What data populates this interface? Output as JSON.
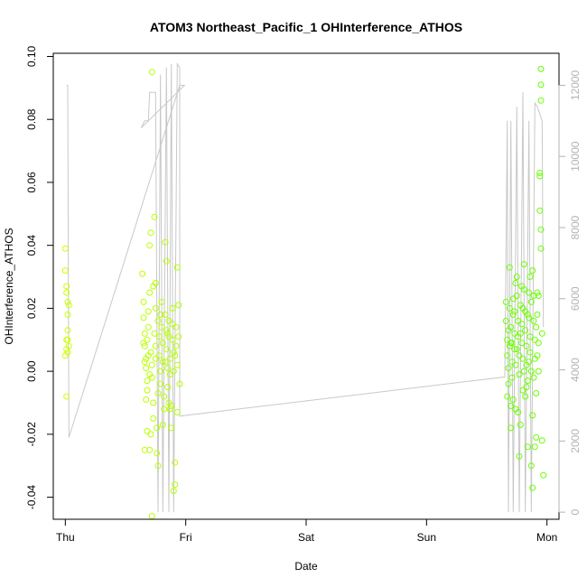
{
  "chart_data": {
    "type": "scatter",
    "title": "ATOM3 Northeast_Pacific_1 OHInterference_ATHOS",
    "xlabel": "Date",
    "ylabel": "OHInterference_ATHOS",
    "x_ticks": [
      "Thu",
      "Fri",
      "Sat",
      "Sun",
      "Mon"
    ],
    "x_range_days": [
      -0.1,
      4.1
    ],
    "ylim": [
      -0.047,
      0.101
    ],
    "y_ticks": [
      -0.04,
      -0.02,
      0.0,
      0.02,
      0.04,
      0.06,
      0.08,
      0.1
    ],
    "y_tick_labels": [
      "-0.04",
      "-0.02",
      "0.00",
      "0.02",
      "0.04",
      "0.06",
      "0.08",
      "0.10"
    ],
    "y2lim": [
      -200,
      12900
    ],
    "y2_ticks": [
      0,
      2000,
      4000,
      6000,
      8000,
      10000,
      12000
    ],
    "y2_tick_labels": [
      "0",
      "2000",
      "4000",
      "6000",
      "8000",
      "10000",
      "12000"
    ],
    "grid": false,
    "point_color_start": "#ccff00",
    "point_color_end": "#66ff00",
    "line_color": "#c8c8c8",
    "altitude_line": [
      [
        0.01,
        12000
      ],
      [
        0.02,
        12000
      ],
      [
        0.03,
        2100
      ],
      [
        0.95,
        12000
      ],
      [
        0.99,
        12000
      ],
      [
        0.63,
        10800
      ],
      [
        0.66,
        11000
      ],
      [
        0.69,
        11000
      ],
      [
        0.7,
        11800
      ],
      [
        0.75,
        11800
      ],
      [
        0.77,
        0
      ],
      [
        0.79,
        12300
      ],
      [
        0.81,
        0
      ],
      [
        0.84,
        12500
      ],
      [
        0.86,
        0
      ],
      [
        0.88,
        12600
      ],
      [
        0.9,
        0
      ],
      [
        0.93,
        12600
      ],
      [
        0.95,
        12500
      ],
      [
        0.95,
        2700
      ],
      [
        3.65,
        3800
      ],
      [
        3.67,
        11000
      ],
      [
        3.68,
        0
      ],
      [
        3.7,
        11000
      ],
      [
        3.72,
        0
      ],
      [
        3.75,
        11400
      ],
      [
        3.77,
        0
      ],
      [
        3.8,
        11800
      ],
      [
        3.82,
        0
      ],
      [
        3.85,
        11000
      ],
      [
        3.87,
        0
      ],
      [
        3.9,
        11500
      ],
      [
        3.92,
        11400
      ],
      [
        3.96,
        11000
      ],
      [
        3.97,
        5200
      ]
    ],
    "points": [
      [
        0.0,
        0.039
      ],
      [
        0.0,
        0.032
      ],
      [
        0.01,
        0.027
      ],
      [
        0.01,
        0.025
      ],
      [
        0.02,
        0.022
      ],
      [
        0.02,
        0.018
      ],
      [
        0.02,
        0.013
      ],
      [
        0.02,
        0.01
      ],
      [
        0.03,
        0.008
      ],
      [
        0.01,
        0.007
      ],
      [
        0.0,
        0.005
      ],
      [
        0.02,
        0.006
      ],
      [
        0.01,
        -0.008
      ],
      [
        0.03,
        0.021
      ],
      [
        0.01,
        0.01
      ],
      [
        0.64,
        0.031
      ],
      [
        0.65,
        0.022
      ],
      [
        0.65,
        0.017
      ],
      [
        0.66,
        0.012
      ],
      [
        0.66,
        0.008
      ],
      [
        0.67,
        0.004
      ],
      [
        0.67,
        0.001
      ],
      [
        0.68,
        -0.003
      ],
      [
        0.68,
        -0.006
      ],
      [
        0.68,
        0.01
      ],
      [
        0.69,
        0.014
      ],
      [
        0.69,
        0.019
      ],
      [
        0.7,
        0.025
      ],
      [
        0.7,
        0.04
      ],
      [
        0.71,
        0.044
      ],
      [
        0.71,
        0.006
      ],
      [
        0.72,
        0.002
      ],
      [
        0.72,
        -0.002
      ],
      [
        0.73,
        -0.01
      ],
      [
        0.73,
        -0.015
      ],
      [
        0.74,
        0.049
      ],
      [
        0.74,
        0.012
      ],
      [
        0.75,
        0.008
      ],
      [
        0.75,
        0.004
      ],
      [
        0.76,
        -0.018
      ],
      [
        0.76,
        -0.026
      ],
      [
        0.77,
        -0.03
      ],
      [
        0.77,
        0.016
      ],
      [
        0.78,
        0.011
      ],
      [
        0.78,
        0.005
      ],
      [
        0.79,
        0.0
      ],
      [
        0.79,
        -0.004
      ],
      [
        0.8,
        0.022
      ],
      [
        0.8,
        0.014
      ],
      [
        0.81,
        0.009
      ],
      [
        0.81,
        0.003
      ],
      [
        0.82,
        -0.008
      ],
      [
        0.82,
        -0.012
      ],
      [
        0.83,
        0.041
      ],
      [
        0.83,
        0.018
      ],
      [
        0.84,
        0.013
      ],
      [
        0.84,
        0.007
      ],
      [
        0.85,
        0.001
      ],
      [
        0.85,
        -0.005
      ],
      [
        0.86,
        0.016
      ],
      [
        0.86,
        0.011
      ],
      [
        0.87,
        0.004
      ],
      [
        0.87,
        -0.001
      ],
      [
        0.88,
        -0.011
      ],
      [
        0.88,
        -0.018
      ],
      [
        0.89,
        0.015
      ],
      [
        0.89,
        0.01
      ],
      [
        0.9,
        0.006
      ],
      [
        0.9,
        0.0
      ],
      [
        0.91,
        -0.029
      ],
      [
        0.91,
        -0.036
      ],
      [
        0.92,
        0.014
      ],
      [
        0.92,
        0.008
      ],
      [
        0.93,
        0.002
      ],
      [
        0.93,
        0.033
      ],
      [
        0.94,
        0.021
      ],
      [
        0.94,
        0.011
      ],
      [
        0.95,
        -0.004
      ],
      [
        0.72,
        0.095
      ],
      [
        0.72,
        -0.046
      ],
      [
        0.65,
        0.009
      ],
      [
        0.66,
        0.003
      ],
      [
        0.67,
        -0.009
      ],
      [
        0.69,
        0.005
      ],
      [
        0.7,
        -0.001
      ],
      [
        0.71,
        -0.02
      ],
      [
        0.73,
        0.027
      ],
      [
        0.75,
        0.02
      ],
      [
        0.77,
        -0.007
      ],
      [
        0.79,
        0.018
      ],
      [
        0.81,
        -0.017
      ],
      [
        0.83,
        0.003
      ],
      [
        0.85,
        0.012
      ],
      [
        0.87,
        -0.012
      ],
      [
        0.89,
        0.02
      ],
      [
        0.91,
        0.005
      ],
      [
        0.93,
        -0.013
      ],
      [
        0.66,
        -0.025
      ],
      [
        0.68,
        -0.019
      ],
      [
        0.7,
        -0.025
      ],
      [
        0.9,
        -0.038
      ],
      [
        0.75,
        0.028
      ],
      [
        0.84,
        0.035
      ],
      [
        0.86,
        -0.01
      ],
      [
        3.66,
        0.022
      ],
      [
        3.66,
        0.016
      ],
      [
        3.67,
        0.01
      ],
      [
        3.67,
        0.005
      ],
      [
        3.68,
        0.001
      ],
      [
        3.68,
        -0.004
      ],
      [
        3.69,
        0.033
      ],
      [
        3.69,
        0.02
      ],
      [
        3.7,
        0.014
      ],
      [
        3.7,
        0.009
      ],
      [
        3.71,
        0.003
      ],
      [
        3.71,
        -0.002
      ],
      [
        3.72,
        -0.009
      ],
      [
        3.72,
        0.018
      ],
      [
        3.73,
        0.012
      ],
      [
        3.73,
        0.007
      ],
      [
        3.74,
        0.002
      ],
      [
        3.74,
        -0.012
      ],
      [
        3.75,
        0.03
      ],
      [
        3.75,
        0.024
      ],
      [
        3.76,
        0.016
      ],
      [
        3.76,
        0.011
      ],
      [
        3.77,
        0.005
      ],
      [
        3.77,
        -0.001
      ],
      [
        3.78,
        -0.017
      ],
      [
        3.78,
        0.021
      ],
      [
        3.79,
        0.015
      ],
      [
        3.79,
        0.009
      ],
      [
        3.8,
        0.004
      ],
      [
        3.8,
        -0.006
      ],
      [
        3.81,
        0.034
      ],
      [
        3.81,
        0.026
      ],
      [
        3.82,
        0.019
      ],
      [
        3.82,
        0.013
      ],
      [
        3.83,
        0.008
      ],
      [
        3.83,
        0.002
      ],
      [
        3.84,
        -0.003
      ],
      [
        3.84,
        -0.024
      ],
      [
        3.85,
        0.025
      ],
      [
        3.85,
        0.017
      ],
      [
        3.86,
        0.011
      ],
      [
        3.86,
        0.006
      ],
      [
        3.87,
        0.0
      ],
      [
        3.87,
        -0.03
      ],
      [
        3.88,
        -0.037
      ],
      [
        3.88,
        0.032
      ],
      [
        3.89,
        0.024
      ],
      [
        3.89,
        0.016
      ],
      [
        3.9,
        0.01
      ],
      [
        3.9,
        0.004
      ],
      [
        3.91,
        -0.007
      ],
      [
        3.91,
        -0.021
      ],
      [
        3.92,
        0.025
      ],
      [
        3.92,
        0.018
      ],
      [
        3.93,
        0.009
      ],
      [
        3.94,
        0.063
      ],
      [
        3.94,
        0.051
      ],
      [
        3.95,
        0.045
      ],
      [
        3.95,
        0.039
      ],
      [
        3.96,
        0.012
      ],
      [
        3.96,
        -0.022
      ],
      [
        3.97,
        -0.033
      ],
      [
        3.95,
        0.096
      ],
      [
        3.95,
        0.091
      ],
      [
        3.95,
        0.086
      ],
      [
        3.94,
        0.062
      ],
      [
        3.67,
        -0.008
      ],
      [
        3.7,
        -0.011
      ],
      [
        3.73,
        0.019
      ],
      [
        3.76,
        -0.013
      ],
      [
        3.79,
        0.027
      ],
      [
        3.82,
        -0.008
      ],
      [
        3.85,
        0.003
      ],
      [
        3.88,
        -0.014
      ],
      [
        3.91,
        0.014
      ],
      [
        3.93,
        0.0
      ],
      [
        3.69,
        0.008
      ],
      [
        3.72,
        0.023
      ],
      [
        3.75,
        0.007
      ],
      [
        3.78,
        0.012
      ],
      [
        3.81,
        0.0
      ],
      [
        3.84,
        0.018
      ],
      [
        3.87,
        0.022
      ],
      [
        3.9,
        -0.024
      ],
      [
        3.93,
        0.024
      ],
      [
        3.7,
        -0.018
      ],
      [
        3.74,
        0.028
      ],
      [
        3.77,
        -0.027
      ],
      [
        3.8,
        0.02
      ],
      [
        3.83,
        -0.005
      ],
      [
        3.86,
        0.03
      ],
      [
        3.89,
        -0.002
      ],
      [
        3.92,
        0.005
      ],
      [
        3.68,
        0.013
      ],
      [
        3.71,
        0.009
      ]
    ]
  }
}
